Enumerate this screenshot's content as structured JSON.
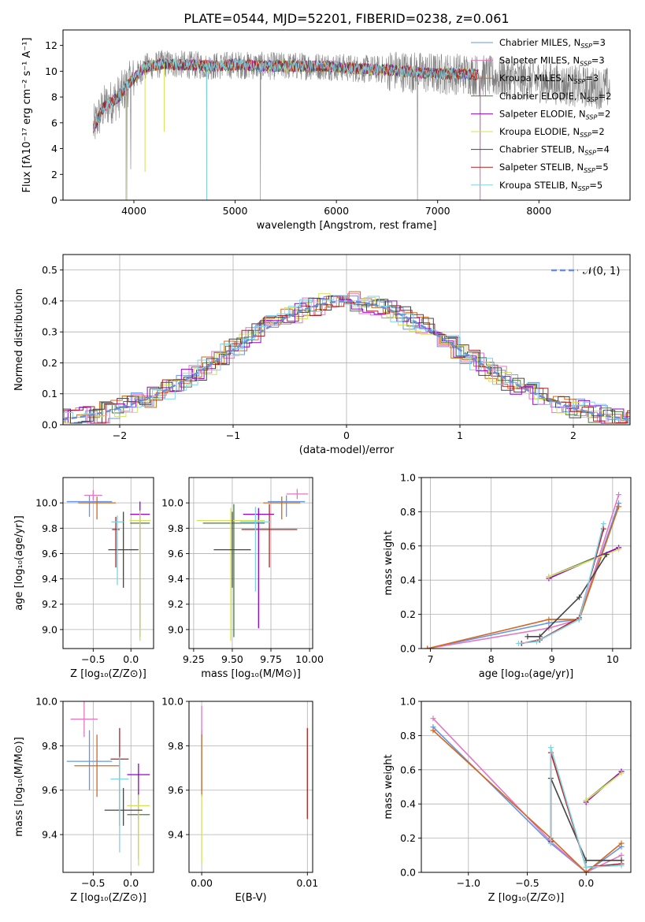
{
  "figure": {
    "title": "PLATE=0544, MJD=52201, FIBERID=0238, z=0.061"
  },
  "legend_series": [
    {
      "name": "Chabrier MILES, N",
      "sub": "SSP",
      "suffix": "=3",
      "color": "#6495ed"
    },
    {
      "name": "Salpeter MILES, N",
      "sub": "SSP",
      "suffix": "=3",
      "color": "#e377c2"
    },
    {
      "name": "Kroupa MILES, N",
      "sub": "SSP",
      "suffix": "=3",
      "color": "#d2691e"
    },
    {
      "name": "Chabrier ELODIE, N",
      "sub": "SSP",
      "suffix": "=2",
      "color": "#4f7942"
    },
    {
      "name": "Salpeter ELODIE, N",
      "sub": "SSP",
      "suffix": "=2",
      "color": "#9400d3"
    },
    {
      "name": "Kroupa ELODIE, N",
      "sub": "SSP",
      "suffix": "=2",
      "color": "#d4e157"
    },
    {
      "name": "Chabrier STELIB, N",
      "sub": "SSP",
      "suffix": "=4",
      "color": "#444444"
    },
    {
      "name": "Salpeter STELIB, N",
      "sub": "SSP",
      "suffix": "=5",
      "color": "#b22222"
    },
    {
      "name": "Kroupa STELIB, N",
      "sub": "SSP",
      "suffix": "=5",
      "color": "#7fd3e6"
    }
  ],
  "chart_data": [
    {
      "id": "spectrum",
      "type": "line",
      "xlabel": "wavelength [Angstrom, rest frame]",
      "ylabel": "Flux [fλ10⁻¹⁷ erg cm⁻² s⁻¹ A⁻¹]",
      "xlim": [
        3300,
        8900
      ],
      "ylim": [
        0,
        13.2
      ],
      "xticks": [
        4000,
        5000,
        6000,
        7000,
        8000
      ],
      "yticks": [
        0,
        2,
        4,
        6,
        8,
        10,
        12
      ],
      "grid": false,
      "legend": "right",
      "data_color": "#808080",
      "continuum": [
        [
          3600,
          5.6
        ],
        [
          3700,
          7.2
        ],
        [
          3850,
          8.0
        ],
        [
          3950,
          9.0
        ],
        [
          4100,
          10.3
        ],
        [
          4300,
          10.6
        ],
        [
          4500,
          10.5
        ],
        [
          4800,
          10.4
        ],
        [
          5000,
          10.5
        ],
        [
          5300,
          10.4
        ],
        [
          5600,
          10.4
        ],
        [
          5900,
          10.4
        ],
        [
          6200,
          10.2
        ],
        [
          6500,
          10.1
        ],
        [
          6800,
          9.9
        ],
        [
          7000,
          9.8
        ],
        [
          7300,
          9.8
        ],
        [
          7600,
          9.5
        ],
        [
          7900,
          9.3
        ],
        [
          8200,
          9.0
        ],
        [
          8400,
          8.8
        ],
        [
          8600,
          8.7
        ]
      ],
      "data_range": [
        3600,
        8700
      ],
      "model_range": [
        3600,
        7400
      ],
      "absorption_spikes": [
        [
          4720,
          0.2
        ],
        [
          5250,
          0.0
        ],
        [
          6800,
          0.0
        ],
        [
          7420,
          0.0
        ],
        [
          3930,
          0.0
        ],
        [
          3970,
          2.4
        ]
      ]
    },
    {
      "id": "residuals",
      "type": "histogram",
      "xlabel": "(data-model)/error",
      "ylabel": "Normed distribution",
      "xlim": [
        -2.5,
        2.5
      ],
      "ylim": [
        0,
        0.55
      ],
      "xticks": [
        -2,
        -1,
        0,
        1,
        2
      ],
      "yticks": [
        0.0,
        0.1,
        0.2,
        0.3,
        0.4,
        0.5
      ],
      "grid": true,
      "legend": "top-right",
      "reference_curve": "𝒩(0, 1)",
      "reference_color": "#6b8fd6",
      "bin_width": 0.1
    },
    {
      "id": "age-vs-Z",
      "type": "errorbar",
      "xlabel": "Z [log₁₀(Z/Z⊙)]",
      "ylabel": "age  [log₁₀(age/yr)]",
      "xlim": [
        -0.9,
        0.3
      ],
      "ylim": [
        8.85,
        10.2
      ],
      "xticks": [
        -0.5,
        0.0
      ],
      "yticks": [
        9.0,
        9.2,
        9.4,
        9.6,
        9.8,
        10.0
      ],
      "grid": true,
      "points": [
        {
          "x": -0.55,
          "y": 10.01,
          "xerr": 0.3,
          "yerr_lo": 0.12,
          "yerr_hi": 0.05,
          "s": 0
        },
        {
          "x": -0.5,
          "y": 10.06,
          "xerr": 0.12,
          "yerr_lo": 0.04,
          "yerr_hi": 0.04,
          "s": 1
        },
        {
          "x": -0.45,
          "y": 10.0,
          "xerr": 0.25,
          "yerr_lo": 0.13,
          "yerr_hi": 0.05,
          "s": 2
        },
        {
          "x": 0.12,
          "y": 9.84,
          "xerr": 0.13,
          "yerr_lo": 0.9,
          "yerr_hi": 0.05,
          "s": 3
        },
        {
          "x": 0.12,
          "y": 9.91,
          "xerr": 0.13,
          "yerr_lo": 0.9,
          "yerr_hi": 0.1,
          "s": 4
        },
        {
          "x": 0.12,
          "y": 9.86,
          "xerr": 0.14,
          "yerr_lo": 0.95,
          "yerr_hi": 0.08,
          "s": 5
        },
        {
          "x": -0.1,
          "y": 9.63,
          "xerr": 0.2,
          "yerr_lo": 0.3,
          "yerr_hi": 0.3,
          "s": 6
        },
        {
          "x": -0.2,
          "y": 9.79,
          "xerr": 0.05,
          "yerr_lo": 0.3,
          "yerr_hi": 0.1,
          "s": 7
        },
        {
          "x": -0.18,
          "y": 9.85,
          "xerr": 0.08,
          "yerr_lo": 0.5,
          "yerr_hi": 0.05,
          "s": 8
        }
      ]
    },
    {
      "id": "age-vs-mass",
      "type": "errorbar",
      "xlabel": "mass [log₁₀(M/M⊙)]",
      "ylabel": "",
      "xlim": [
        9.22,
        10.02
      ],
      "ylim": [
        8.85,
        10.2
      ],
      "xticks": [
        9.25,
        9.5,
        9.75,
        10.0
      ],
      "yticks": [
        9.0,
        9.2,
        9.4,
        9.6,
        9.8,
        10.0
      ],
      "grid": true,
      "points": [
        {
          "x": 9.85,
          "y": 10.01,
          "xerr": 0.12,
          "yerr_lo": 0.12,
          "yerr_hi": 0.05,
          "s": 0
        },
        {
          "x": 9.92,
          "y": 10.07,
          "xerr": 0.07,
          "yerr_lo": 0.04,
          "yerr_hi": 0.04,
          "s": 1
        },
        {
          "x": 9.82,
          "y": 10.0,
          "xerr": 0.12,
          "yerr_lo": 0.13,
          "yerr_hi": 0.05,
          "s": 2
        },
        {
          "x": 9.51,
          "y": 9.84,
          "xerr": 0.2,
          "yerr_lo": 0.9,
          "yerr_hi": 0.15,
          "s": 3
        },
        {
          "x": 9.67,
          "y": 9.91,
          "xerr": 0.1,
          "yerr_lo": 0.9,
          "yerr_hi": 0.05,
          "s": 4
        },
        {
          "x": 9.49,
          "y": 9.86,
          "xerr": 0.22,
          "yerr_lo": 0.95,
          "yerr_hi": 0.1,
          "s": 5
        },
        {
          "x": 9.5,
          "y": 9.63,
          "xerr": 0.12,
          "yerr_lo": 0.3,
          "yerr_hi": 0.3,
          "s": 6
        },
        {
          "x": 9.74,
          "y": 9.79,
          "xerr": 0.18,
          "yerr_lo": 0.3,
          "yerr_hi": 0.2,
          "s": 7
        },
        {
          "x": 9.65,
          "y": 9.85,
          "xerr": 0.1,
          "yerr_lo": 0.55,
          "yerr_hi": 0.12,
          "s": 8
        }
      ]
    },
    {
      "id": "weight-vs-age",
      "type": "line",
      "xlabel": "age  [log₁₀(age/yr)]",
      "ylabel": "mass weight",
      "xlim": [
        6.85,
        10.3
      ],
      "ylim": [
        0,
        1.0
      ],
      "xticks": [
        7,
        8,
        9,
        10
      ],
      "yticks": [
        0.0,
        0.2,
        0.4,
        0.6,
        0.8,
        1.0
      ],
      "grid": true,
      "series": [
        {
          "s": 0,
          "x": [
            6.95,
            8.95,
            9.45,
            10.1
          ],
          "y": [
            0.0,
            0.15,
            0.17,
            0.85
          ]
        },
        {
          "s": 1,
          "x": [
            6.95,
            8.95,
            9.45,
            10.1
          ],
          "y": [
            0.0,
            0.12,
            0.17,
            0.9
          ]
        },
        {
          "s": 2,
          "x": [
            6.95,
            8.95,
            9.45,
            10.1
          ],
          "y": [
            0.0,
            0.17,
            0.17,
            0.83
          ]
        },
        {
          "s": 3,
          "x": [
            8.95,
            10.1
          ],
          "y": [
            0.42,
            0.59
          ]
        },
        {
          "s": 4,
          "x": [
            8.95,
            10.1
          ],
          "y": [
            0.41,
            0.59
          ]
        },
        {
          "s": 5,
          "x": [
            8.95,
            10.1
          ],
          "y": [
            0.42,
            0.58
          ]
        },
        {
          "s": 6,
          "x": [
            8.6,
            8.8,
            9.45,
            9.9
          ],
          "y": [
            0.07,
            0.07,
            0.3,
            0.55
          ]
        },
        {
          "s": 7,
          "x": [
            8.5,
            8.8,
            9.45,
            9.85
          ],
          "y": [
            0.03,
            0.05,
            0.18,
            0.7
          ]
        },
        {
          "s": 8,
          "x": [
            8.45,
            8.75,
            9.45,
            9.85
          ],
          "y": [
            0.03,
            0.04,
            0.17,
            0.73
          ]
        }
      ]
    },
    {
      "id": "mass-vs-Z",
      "type": "errorbar",
      "xlabel": "Z [log₁₀(Z/Z⊙)]",
      "ylabel": "mass [log₁₀(M/M⊙)]",
      "xlim": [
        -0.9,
        0.3
      ],
      "ylim": [
        9.23,
        10.0
      ],
      "xticks": [
        -0.5,
        0.0
      ],
      "yticks": [
        9.4,
        9.6,
        9.8,
        10.0
      ],
      "grid": true,
      "points": [
        {
          "x": -0.55,
          "y": 9.73,
          "xerr": 0.3,
          "yerr_lo": 0.13,
          "yerr_hi": 0.14,
          "s": 0
        },
        {
          "x": -0.62,
          "y": 9.92,
          "xerr": 0.18,
          "yerr_lo": 0.08,
          "yerr_hi": 0.08,
          "s": 1
        },
        {
          "x": -0.45,
          "y": 9.71,
          "xerr": 0.3,
          "yerr_lo": 0.14,
          "yerr_hi": 0.14,
          "s": 2
        },
        {
          "x": 0.1,
          "y": 9.49,
          "xerr": 0.15,
          "yerr_lo": 0.2,
          "yerr_hi": 0.1,
          "s": 3
        },
        {
          "x": 0.1,
          "y": 9.67,
          "xerr": 0.15,
          "yerr_lo": 0.2,
          "yerr_hi": 0.05,
          "s": 4
        },
        {
          "x": 0.1,
          "y": 9.53,
          "xerr": 0.15,
          "yerr_lo": 0.27,
          "yerr_hi": 0.05,
          "s": 5
        },
        {
          "x": -0.1,
          "y": 9.51,
          "xerr": 0.25,
          "yerr_lo": 0.07,
          "yerr_hi": 0.1,
          "s": 6
        },
        {
          "x": -0.15,
          "y": 9.74,
          "xerr": 0.12,
          "yerr_lo": 0.3,
          "yerr_hi": 0.14,
          "s": 7
        },
        {
          "x": -0.15,
          "y": 9.65,
          "xerr": 0.12,
          "yerr_lo": 0.33,
          "yerr_hi": 0.1,
          "s": 8
        }
      ]
    },
    {
      "id": "mass-vs-ebv",
      "type": "errorbar",
      "xlabel": "E(B-V)",
      "ylabel": "",
      "xlim": [
        -0.0012,
        0.0105
      ],
      "ylim": [
        9.23,
        10.0
      ],
      "xticks": [
        0.0,
        0.01
      ],
      "yticks": [
        9.4,
        9.6,
        9.8,
        10.0
      ],
      "grid": true,
      "points": [
        {
          "x": 0.0,
          "y": 9.73,
          "xerr": 0,
          "yerr_lo": 0.13,
          "yerr_hi": 0.14,
          "s": 0
        },
        {
          "x": 0.0,
          "y": 9.92,
          "xerr": 0,
          "yerr_lo": 0.08,
          "yerr_hi": 0.06,
          "s": 1
        },
        {
          "x": 0.0,
          "y": 9.71,
          "xerr": 0,
          "yerr_lo": 0.14,
          "yerr_hi": 0.14,
          "s": 2
        },
        {
          "x": 0.0,
          "y": 9.53,
          "xerr": 0,
          "yerr_lo": 0.26,
          "yerr_hi": 0.05,
          "s": 5
        },
        {
          "x": 0.01,
          "y": 9.67,
          "xerr": 0,
          "yerr_lo": 0.2,
          "yerr_hi": 0.21,
          "s": 7
        }
      ]
    },
    {
      "id": "weight-vs-Z",
      "type": "line",
      "xlabel": "Z [log₁₀(Z/Z⊙)]",
      "ylabel": "mass weight",
      "xlim": [
        -1.4,
        0.38
      ],
      "ylim": [
        0,
        1.0
      ],
      "xticks": [
        -1.0,
        -0.5,
        0.0
      ],
      "yticks": [
        0.0,
        0.2,
        0.4,
        0.6,
        0.8,
        1.0
      ],
      "grid": true,
      "series": [
        {
          "s": 0,
          "x": [
            -1.3,
            -0.3,
            0.0,
            0.3
          ],
          "y": [
            0.85,
            0.17,
            0.0,
            0.15
          ]
        },
        {
          "s": 1,
          "x": [
            -1.3,
            -0.3,
            0.0,
            0.3
          ],
          "y": [
            0.9,
            0.18,
            0.0,
            0.1
          ]
        },
        {
          "s": 2,
          "x": [
            -1.3,
            -0.3,
            0.0,
            0.3
          ],
          "y": [
            0.83,
            0.2,
            0.0,
            0.17
          ]
        },
        {
          "s": 3,
          "x": [
            0.0,
            0.3
          ],
          "y": [
            0.42,
            0.59
          ]
        },
        {
          "s": 4,
          "x": [
            0.0,
            0.3
          ],
          "y": [
            0.41,
            0.59
          ]
        },
        {
          "s": 5,
          "x": [
            0.0,
            0.3
          ],
          "y": [
            0.42,
            0.58
          ]
        },
        {
          "s": 6,
          "x": [
            -0.3,
            -0.3,
            0.0,
            0.3
          ],
          "y": [
            0.18,
            0.55,
            0.07,
            0.07
          ]
        },
        {
          "s": 7,
          "x": [
            -0.3,
            -0.3,
            0.0,
            0.3
          ],
          "y": [
            0.18,
            0.7,
            0.03,
            0.05
          ]
        },
        {
          "s": 8,
          "x": [
            -0.3,
            -0.3,
            0.0,
            0.3
          ],
          "y": [
            0.17,
            0.73,
            0.03,
            0.04
          ]
        }
      ]
    }
  ]
}
